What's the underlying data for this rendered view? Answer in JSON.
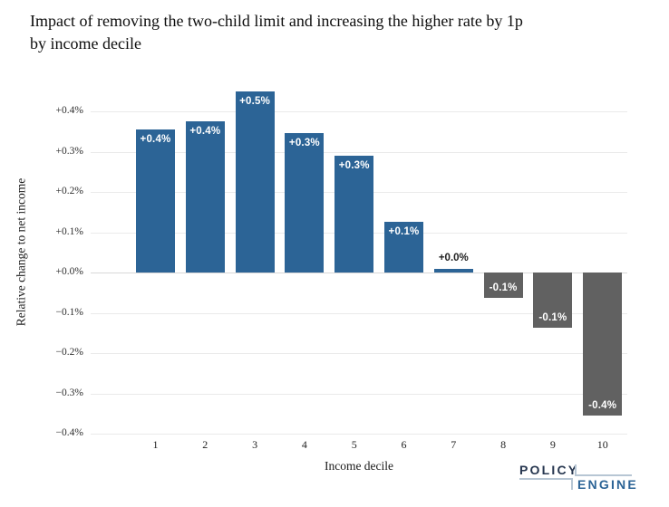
{
  "chart_data": {
    "type": "bar",
    "title": "Impact of removing the two-child limit and increasing the higher rate by 1p by income decile",
    "title_line1": "Impact of removing the two-child limit and increasing the higher rate by 1p",
    "title_line2": "by income decile",
    "xlabel": "Income decile",
    "ylabel": "Relative change to net income",
    "categories": [
      "1",
      "2",
      "3",
      "4",
      "5",
      "6",
      "7",
      "8",
      "9",
      "10"
    ],
    "values": [
      0.355,
      0.375,
      0.45,
      0.345,
      0.29,
      0.125,
      0.01,
      -0.063,
      -0.137,
      -0.355
    ],
    "bar_labels": [
      "+0.4%",
      "+0.4%",
      "+0.5%",
      "+0.3%",
      "+0.3%",
      "+0.1%",
      "+0.0%",
      "-0.1%",
      "-0.1%",
      "-0.4%"
    ],
    "yticks": [
      {
        "value": 0.4,
        "label": "+0.4%"
      },
      {
        "value": 0.3,
        "label": "+0.3%"
      },
      {
        "value": 0.2,
        "label": "+0.2%"
      },
      {
        "value": 0.1,
        "label": "+0.1%"
      },
      {
        "value": 0.0,
        "label": "+0.0%"
      },
      {
        "value": -0.1,
        "label": "−0.1%"
      },
      {
        "value": -0.2,
        "label": "−0.2%"
      },
      {
        "value": -0.3,
        "label": "−0.3%"
      },
      {
        "value": -0.4,
        "label": "−0.4%"
      }
    ],
    "ylim": [
      -0.45,
      0.48
    ],
    "grid": true,
    "legend_position": "none",
    "colors": {
      "positive_bar": "#2C6496",
      "negative_bar": "#616161",
      "inside_label": "#ffffff",
      "outside_label": "#212121",
      "gridline": "#eaeaea"
    }
  },
  "logo": {
    "line1": "POLICY",
    "line2": "ENGINE"
  }
}
